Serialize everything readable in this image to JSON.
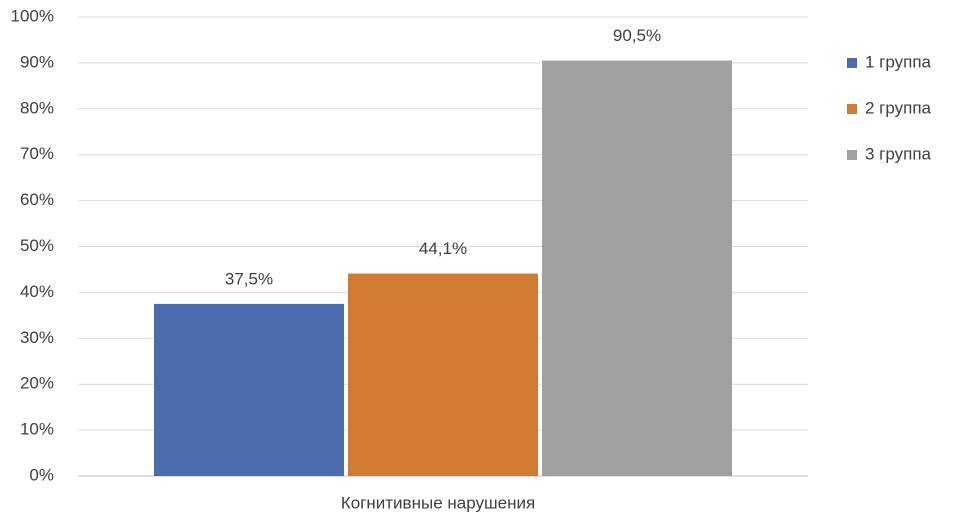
{
  "chart_data": {
    "type": "bar",
    "categories": [
      "Когнитивные нарушения"
    ],
    "series": [
      {
        "name": "1 группа",
        "color": "#4a6cad",
        "values": [
          37.5
        ],
        "value_labels": [
          "37,5%"
        ]
      },
      {
        "name": "2 группа",
        "color": "#d07a32",
        "values": [
          44.1
        ],
        "value_labels": [
          "44,1%"
        ]
      },
      {
        "name": "3 группа",
        "color": "#a0a0a0",
        "values": [
          90.5
        ],
        "value_labels": [
          "90,5%"
        ]
      }
    ],
    "ylim": [
      0,
      100
    ],
    "yticks": [
      {
        "value": 0,
        "label": "0%"
      },
      {
        "value": 10,
        "label": "10%"
      },
      {
        "value": 20,
        "label": "20%"
      },
      {
        "value": 30,
        "label": "30%"
      },
      {
        "value": 40,
        "label": "40%"
      },
      {
        "value": 50,
        "label": "50%"
      },
      {
        "value": 60,
        "label": "60%"
      },
      {
        "value": 70,
        "label": "70%"
      },
      {
        "value": 80,
        "label": "80%"
      },
      {
        "value": 90,
        "label": "90%"
      },
      {
        "value": 100,
        "label": "100%"
      }
    ],
    "grid": true,
    "legend": "right"
  }
}
